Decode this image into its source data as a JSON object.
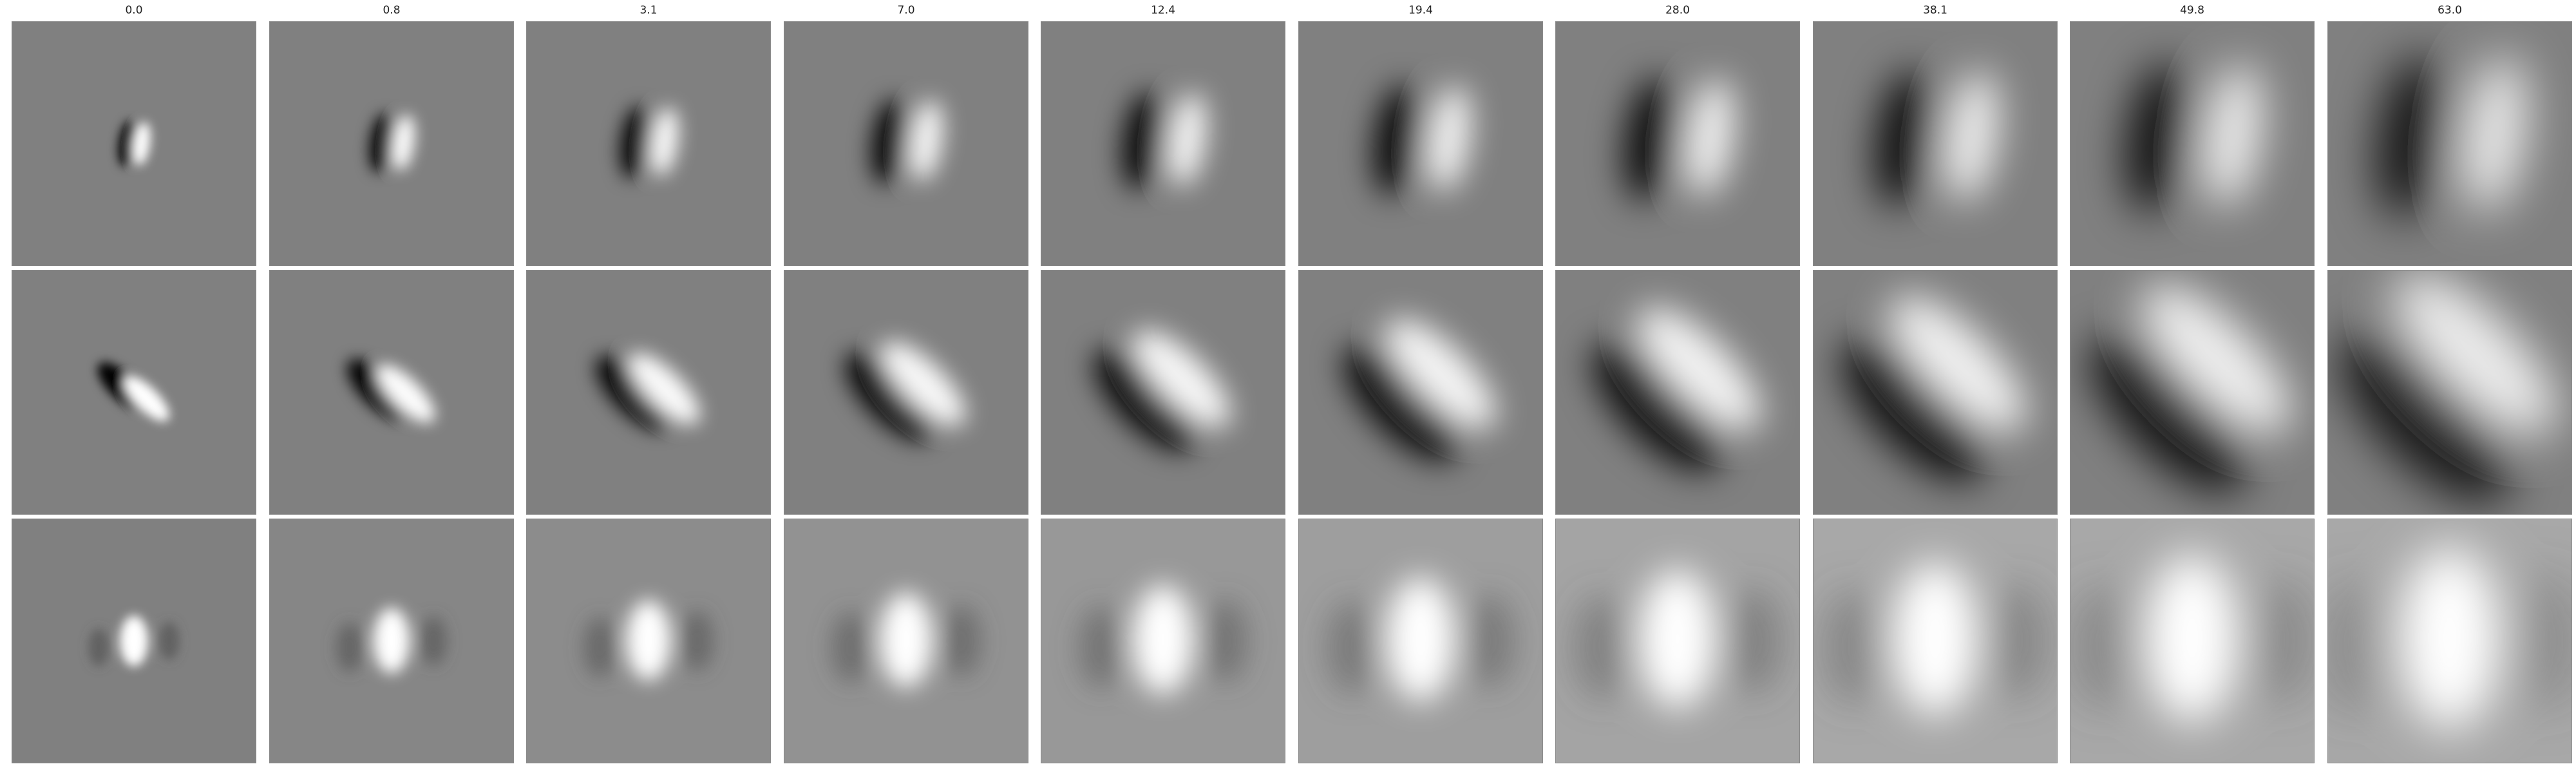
{
  "figure": {
    "column_titles": [
      "0.0",
      "0.8",
      "3.1",
      "7.0",
      "12.4",
      "19.4",
      "28.0",
      "38.1",
      "49.8",
      "63.0"
    ],
    "rows": 3,
    "background_gray": "#808080",
    "dark_color": "#000000",
    "light_color": "#ffffff"
  }
}
